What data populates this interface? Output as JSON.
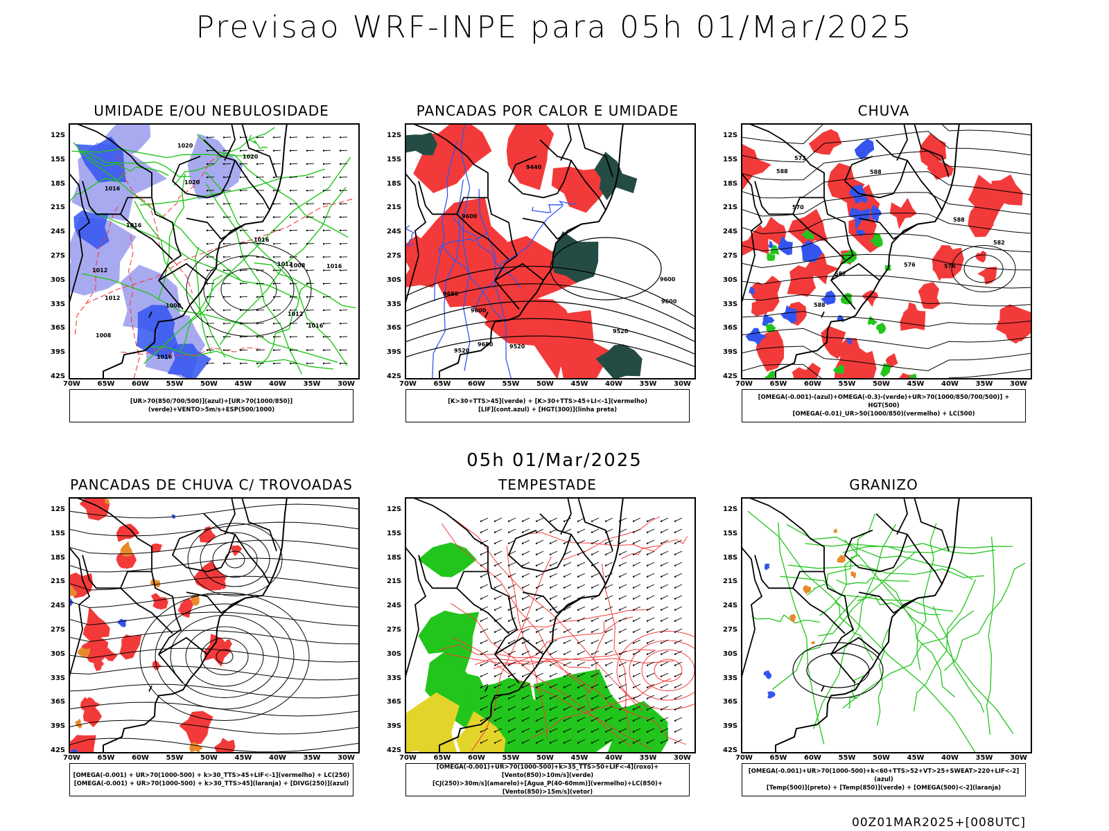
{
  "header": {
    "title": "Previsao WRF-INPE  para 05h 01/Mar/2025",
    "subtitle": "05h 01/Mar/2025",
    "footer": "00Z01MAR2025+[008UTC]"
  },
  "axes": {
    "latitudes": [
      "12S",
      "15S",
      "18S",
      "21S",
      "24S",
      "27S",
      "30S",
      "33S",
      "36S",
      "39S",
      "42S"
    ],
    "longitudes": [
      "70W",
      "65W",
      "60W",
      "55W",
      "50W",
      "45W",
      "40W",
      "35W",
      "30W"
    ]
  },
  "colors": {
    "blue": "#3355ee",
    "lightblue": "#a8aaf0",
    "red": "#f23a3a",
    "green": "#22c51b",
    "darkgreen": "#244c44",
    "orange": "#e88a2a",
    "yellow": "#e3d42a"
  },
  "panels": [
    {
      "title": "UMIDADE E/OU NEBULOSIDADE",
      "legend": [
        "[UR>70(850/700/500)](azul)+[UR>70(1000/850)](verde)+VENTO>5m/s+ESP(500/1000)"
      ],
      "contour_labels": [
        "1012",
        "1012",
        "1016",
        "1016",
        "1020",
        "1016",
        "1016",
        "1020",
        "1008",
        "1012",
        "1008",
        "1020",
        "1016",
        "1008",
        "1012",
        "1016"
      ]
    },
    {
      "title": "PANCADAS POR CALOR E UMIDADE",
      "legend": [
        "[K>30+TTS>45](verde) + [K>30+TTS>45+LI<-1](vermelho)",
        "[LIF](cont.azul) + [HGT(300)](linha preta)"
      ],
      "contour_labels": [
        "9600",
        "9600",
        "9520",
        "9600",
        "9680",
        "9680",
        "9600",
        "9520",
        "9440",
        "9520"
      ]
    },
    {
      "title": "CHUVA",
      "legend": [
        "[OMEGA(-0.001)-(azul)+OMEGA(-0.3)-(verde)+UR>70(1000/850/700/500)] + HGT(500)",
        "[OMEGA(-0.01)_UR>50(1000/850)(vermelho) + LC(500)"
      ],
      "contour_labels": [
        "588",
        "582",
        "588",
        "588",
        "588",
        "573",
        "570",
        "576",
        "582",
        "576"
      ]
    },
    {
      "title": "PANCADAS DE CHUVA C/ TROVOADAS",
      "legend": [
        "[OMEGA(-0.001) + UR>70(1000-500) + k>30_TTS>45+LIF<-1](vermelho) + LC(250)",
        "[OMEGA(-0.001) + UR>70(1000-500) + k>30_TTS>45](laranja) + [DIVG(250)](azul)"
      ]
    },
    {
      "title": "TEMPESTADE",
      "legend": [
        "[OMEGA(-0.001)+UR>70(1000-500)+k>35_TTS>50+LIF<-4](roxo)+[Vento(850)>10m/s](verde)",
        "[CJ(250)>30m/s](amarelo)+[Agua_P(40-60mm)](vermelho)+LC(850)+[Vento(850)>15m/s](vetor)"
      ]
    },
    {
      "title": "GRANIZO",
      "legend": [
        "[OMEGA(-0.001)+UR>70(1000-500)+k<60+TTS>52+VT>25+SWEAT>220+LIF<-2](azul)",
        "[Temp(500)](preto) + [Temp(850)](verde) + [OMEGA(500)<-2](laranja)"
      ]
    }
  ]
}
